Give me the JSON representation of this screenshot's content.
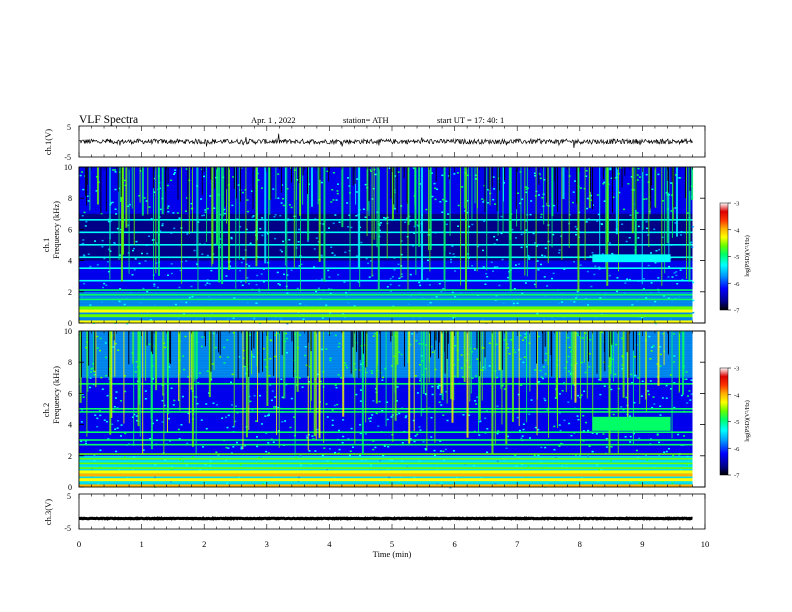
{
  "header": {
    "title": "VLF  Spectra",
    "date": "Apr. 1  , 2022",
    "station": "station= ATH",
    "start": "start  UT  =    17: 40: 1"
  },
  "colors": {
    "colormap": [
      "#000000",
      "#00008b",
      "#0000ff",
      "#0099ff",
      "#00ffff",
      "#00ff66",
      "#66ff00",
      "#ffff00",
      "#ffb000",
      "#ff3300",
      "#dd0000",
      "#ffffff"
    ],
    "trace": "#000000"
  },
  "chart_data": [
    {
      "type": "line",
      "name": "ch1-waveform",
      "ylabel": "ch.1(V)",
      "ylim": [
        -5,
        5
      ],
      "yticks": [
        "5",
        "-5"
      ],
      "baseline": 0,
      "amplitude_approx": 0.8
    },
    {
      "type": "heatmap",
      "name": "ch1-spectrogram",
      "ylabel_channel": "ch.1",
      "ylabel": "Frequency  (kHz)",
      "ylim": [
        0,
        10
      ],
      "yticks": [
        "0",
        "2",
        "4",
        "6",
        "8",
        "10"
      ],
      "xlim": [
        0,
        9.8
      ],
      "colorbar": {
        "label": "log(PSD)(V²/Hz)",
        "range": [
          -7,
          -3
        ],
        "ticks": [
          "-3",
          "-4",
          "-5",
          "-6",
          "-7"
        ]
      },
      "bands_khz": [
        0.1,
        0.5,
        0.8,
        1.0,
        1.5,
        1.8,
        2.1,
        2.7,
        3.5,
        4.2,
        5.0,
        5.8,
        6.6
      ],
      "event": {
        "t_min": [
          8.2,
          9.45
        ],
        "f_khz": [
          3.9,
          4.4
        ]
      }
    },
    {
      "type": "heatmap",
      "name": "ch2-spectrogram",
      "ylabel_channel": "ch.2",
      "ylabel": "Frequency  (kHz)",
      "ylim": [
        0,
        10
      ],
      "yticks": [
        "0",
        "2",
        "4",
        "6",
        "8",
        "10"
      ],
      "xlim": [
        0,
        9.8
      ],
      "colorbar": {
        "label": "log(PSD)(V²/Hz)",
        "range": [
          -7,
          -3
        ],
        "ticks": [
          "-3",
          "-4",
          "-5",
          "-6",
          "-7"
        ]
      },
      "bands_khz": [
        0.1,
        0.5,
        0.8,
        1.0,
        1.2,
        1.5,
        1.8,
        2.1,
        2.7,
        3.0,
        3.5,
        4.8,
        5.0,
        6.6
      ],
      "event": {
        "t_min": [
          8.2,
          9.45
        ],
        "f_khz": [
          3.6,
          4.5
        ]
      }
    },
    {
      "type": "line",
      "name": "ch3-waveform",
      "ylabel": "ch.3(V)",
      "ylim": [
        -5,
        5
      ],
      "yticks": [
        "5",
        "-5"
      ],
      "baseline": -2.0,
      "amplitude_approx": 0.1
    }
  ],
  "xaxis": {
    "label": "Time  (min)",
    "ticks": [
      "0",
      "1",
      "2",
      "3",
      "4",
      "5",
      "6",
      "7",
      "8",
      "9",
      "10"
    ],
    "range": [
      0,
      10
    ]
  }
}
